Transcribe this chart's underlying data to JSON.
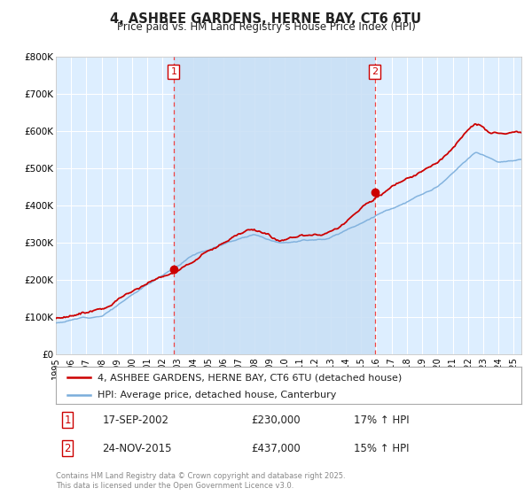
{
  "title": "4, ASHBEE GARDENS, HERNE BAY, CT6 6TU",
  "subtitle": "Price paid vs. HM Land Registry's House Price Index (HPI)",
  "legend_line1": "4, ASHBEE GARDENS, HERNE BAY, CT6 6TU (detached house)",
  "legend_line2": "HPI: Average price, detached house, Canterbury",
  "sale1_date": "17-SEP-2002",
  "sale1_price": "£230,000",
  "sale1_hpi": "17% ↑ HPI",
  "sale2_date": "24-NOV-2015",
  "sale2_price": "£437,000",
  "sale2_hpi": "15% ↑ HPI",
  "footer": "Contains HM Land Registry data © Crown copyright and database right 2025.\nThis data is licensed under the Open Government Licence v3.0.",
  "sale1_year": 2002.72,
  "sale2_year": 2015.9,
  "sale1_price_val": 230000,
  "sale2_price_val": 437000,
  "red_color": "#cc0000",
  "blue_color": "#7aaddb",
  "bg_color": "#ddeeff",
  "shade_color": "#c8dff5",
  "grid_color": "#ffffff",
  "vline_color": "#ee4444",
  "dot_color": "#cc0000",
  "ylim": [
    0,
    800000
  ],
  "xlim_start": 1995,
  "xlim_end": 2025.5
}
